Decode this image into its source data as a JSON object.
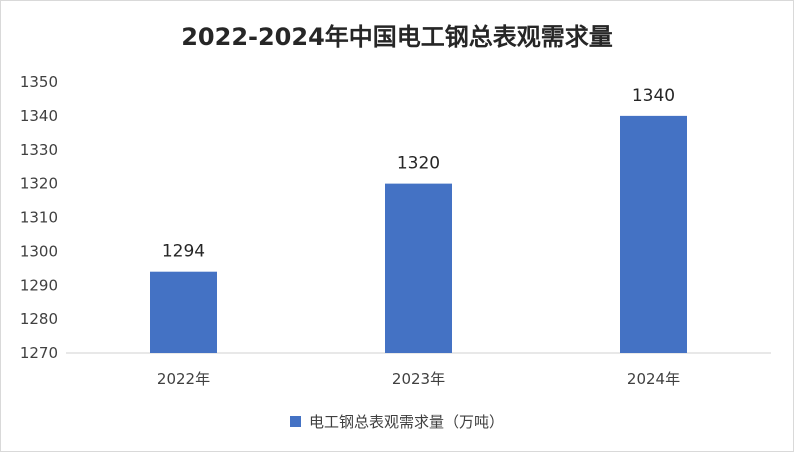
{
  "chart_data": {
    "type": "bar",
    "title": "2022-2024年中国电工钢总表观需求量",
    "categories": [
      "2022年",
      "2023年",
      "2024年"
    ],
    "series": [
      {
        "name": "电工钢总表观需求量（万吨）",
        "values": [
          1294,
          1320,
          1340
        ]
      }
    ],
    "data_labels": [
      "1294",
      "1320",
      "1340"
    ],
    "y_ticks": [
      1270,
      1280,
      1290,
      1300,
      1310,
      1320,
      1330,
      1340,
      1350
    ],
    "ylim": [
      1270,
      1350
    ],
    "xlabel": "",
    "ylabel": "",
    "grid": false,
    "legend_position": "bottom",
    "colors": {
      "bar": "#4472c4",
      "axis": "#d9d9d9"
    }
  }
}
